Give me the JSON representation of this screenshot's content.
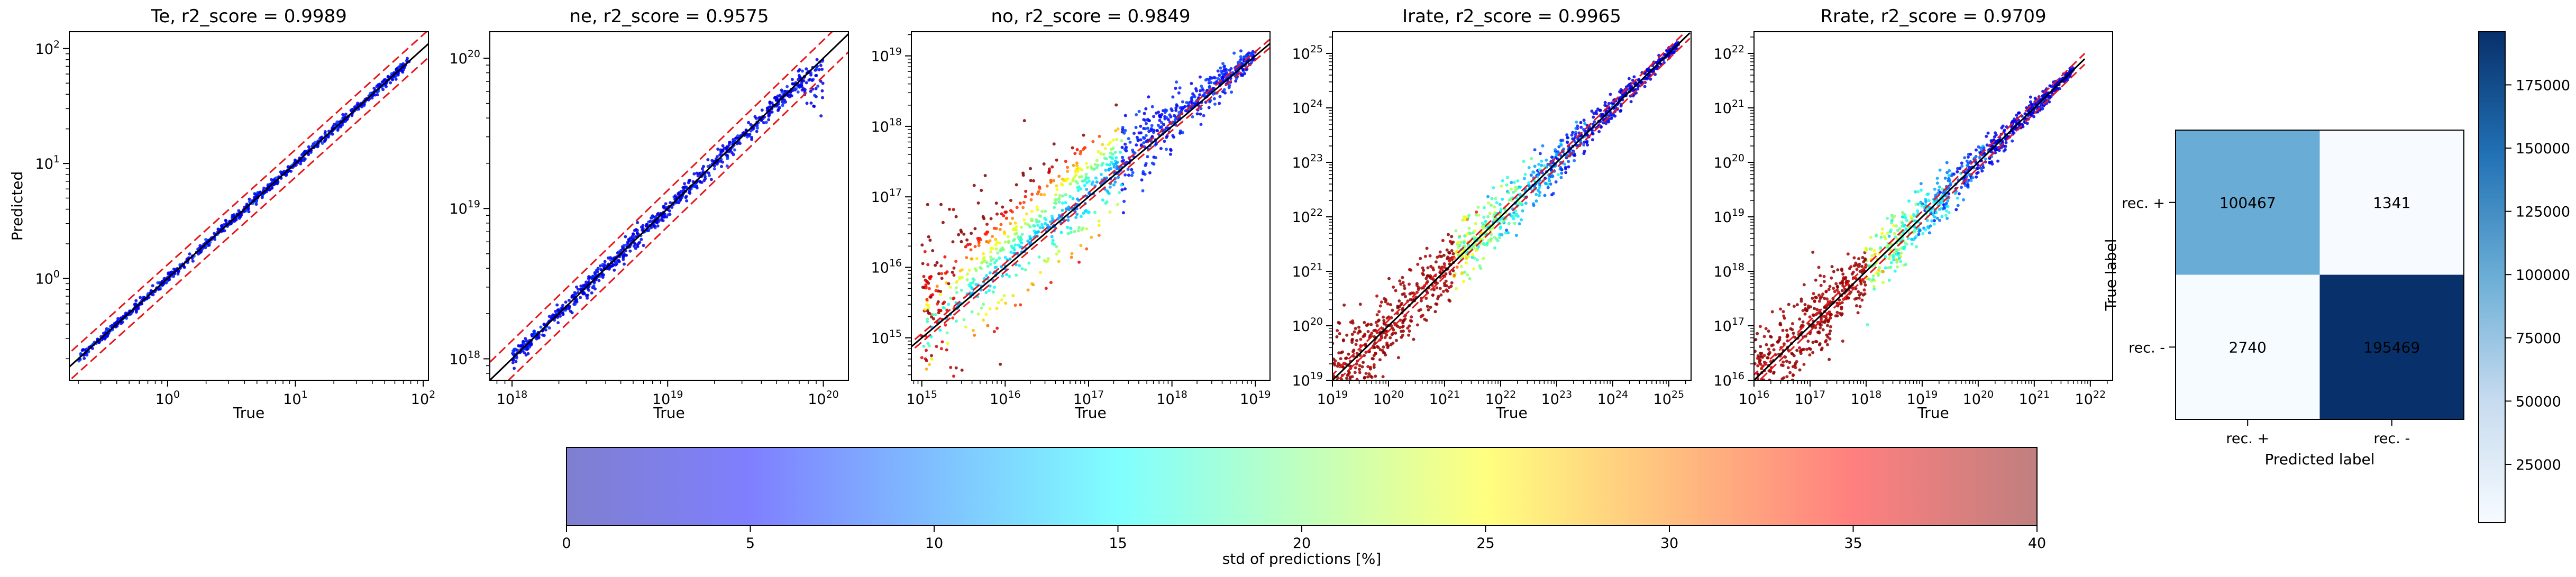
{
  "figure": {
    "colorbar": {
      "label": "std of predictions [%]",
      "ticks": [
        "0",
        "5",
        "10",
        "15",
        "20",
        "25",
        "30",
        "35",
        "40"
      ],
      "stops": [
        "#7f7fd0",
        "#7f7fff",
        "#7fbfff",
        "#7fffff",
        "#bfffbf",
        "#ffff7f",
        "#ffbf7f",
        "#ff7f7f",
        "#c07f7f"
      ]
    },
    "cm_colorbar": {
      "ticks": [
        "25000",
        "50000",
        "75000",
        "100000",
        "125000",
        "150000",
        "175000"
      ],
      "range": [
        2000,
        196000
      ],
      "stops": [
        "#f7fbff",
        "#c6dbef",
        "#6baed6",
        "#2171b5",
        "#08306b"
      ]
    }
  },
  "chart_data": [
    {
      "type": "scatter",
      "title": "Te, r2_score = 0.9989",
      "xlabel": "True",
      "ylabel": "Predicted",
      "scale": "log",
      "xlim": [
        0.17,
        110
      ],
      "ylim": [
        0.13,
        140
      ],
      "xticks": [
        {
          "v": 1,
          "label": "10^0"
        },
        {
          "v": 10,
          "label": "10^1"
        },
        {
          "v": 100,
          "label": "10^2"
        }
      ],
      "yticks": [
        {
          "v": 1,
          "label": "10^0"
        },
        {
          "v": 10,
          "label": "10^1"
        },
        {
          "v": 100,
          "label": "10^2"
        }
      ],
      "data_range": [
        0.2,
        80
      ],
      "spread": 0.02,
      "band": 0.12,
      "color_mode": "blue"
    },
    {
      "type": "scatter",
      "title": "ne, r2_score = 0.9575",
      "xlabel": "True",
      "ylabel": "",
      "scale": "log",
      "xlim": [
        7.2e+17,
        1.45e+20
      ],
      "ylim": [
        7.2e+17,
        1.5e+20
      ],
      "xticks": [
        {
          "v": 1e+18,
          "label": "10^18"
        },
        {
          "v": 1e+19,
          "label": "10^19"
        },
        {
          "v": 1e+20,
          "label": "10^20"
        }
      ],
      "yticks": [
        {
          "v": 1e+18,
          "label": "10^18"
        },
        {
          "v": 1e+19,
          "label": "10^19"
        },
        {
          "v": 1e+20,
          "label": "10^20"
        }
      ],
      "data_range": [
        1e+18,
        1e+20
      ],
      "spread": 0.03,
      "band": 0.12,
      "color_mode": "blue_sat"
    },
    {
      "type": "scatter",
      "title": "no, r2_score = 0.9849",
      "xlabel": "True",
      "ylabel": "",
      "scale": "log",
      "xlim": [
        750000000000000.0,
        1.5e+19
      ],
      "ylim": [
        250000000000000.0,
        2.2e+19
      ],
      "xticks": [
        {
          "v": 1000000000000000.0,
          "label": "10^15"
        },
        {
          "v": 1e+16,
          "label": "10^16"
        },
        {
          "v": 1e+17,
          "label": "10^17"
        },
        {
          "v": 1e+18,
          "label": "10^18"
        },
        {
          "v": 1e+19,
          "label": "10^19"
        }
      ],
      "yticks": [
        {
          "v": 1000000000000000.0,
          "label": "10^15"
        },
        {
          "v": 1e+16,
          "label": "10^16"
        },
        {
          "v": 1e+17,
          "label": "10^17"
        },
        {
          "v": 1e+18,
          "label": "10^18"
        },
        {
          "v": 1e+19,
          "label": "10^19"
        }
      ],
      "data_range": [
        1000000000000000.0,
        1e+19
      ],
      "spread": 0.25,
      "band": 0.06,
      "color_mode": "no"
    },
    {
      "type": "scatter",
      "title": "Irate, r2_score = 0.9965",
      "xlabel": "True",
      "ylabel": "",
      "scale": "log",
      "xlim": [
        1e+19,
        2.5e+25
      ],
      "ylim": [
        1e+19,
        2.5e+25
      ],
      "xticks": [
        {
          "v": 1e+19,
          "label": "10^19"
        },
        {
          "v": 1e+20,
          "label": "10^20"
        },
        {
          "v": 1e+21,
          "label": "10^21"
        },
        {
          "v": 1e+22,
          "label": "10^22"
        },
        {
          "v": 1e+23,
          "label": "10^23"
        },
        {
          "v": 1e+24,
          "label": "10^24"
        },
        {
          "v": 1e+25,
          "label": "10^25"
        }
      ],
      "yticks": [
        {
          "v": 1e+19,
          "label": "10^19"
        },
        {
          "v": 1e+20,
          "label": "10^20"
        },
        {
          "v": 1e+21,
          "label": "10^21"
        },
        {
          "v": 1e+22,
          "label": "10^22"
        },
        {
          "v": 1e+23,
          "label": "10^23"
        },
        {
          "v": 1e+24,
          "label": "10^24"
        },
        {
          "v": 1e+25,
          "label": "10^25"
        }
      ],
      "data_range": [
        1e+19,
        1.5e+25
      ],
      "spread": 0.22,
      "band": 0.1,
      "color_mode": "rate"
    },
    {
      "type": "scatter",
      "title": "Rrate, r2_score = 0.9709",
      "xlabel": "True",
      "ylabel": "",
      "scale": "log",
      "xlim": [
        1e+16,
        2.5e+22
      ],
      "ylim": [
        1e+16,
        2.5e+22
      ],
      "xticks": [
        {
          "v": 1e+16,
          "label": "10^16"
        },
        {
          "v": 1e+17,
          "label": "10^17"
        },
        {
          "v": 1e+18,
          "label": "10^18"
        },
        {
          "v": 1e+19,
          "label": "10^19"
        },
        {
          "v": 1e+20,
          "label": "10^20"
        },
        {
          "v": 1e+21,
          "label": "10^21"
        },
        {
          "v": 1e+22,
          "label": "10^22"
        }
      ],
      "yticks": [
        {
          "v": 1e+16,
          "label": "10^16"
        },
        {
          "v": 1e+17,
          "label": "10^17"
        },
        {
          "v": 1e+18,
          "label": "10^18"
        },
        {
          "v": 1e+19,
          "label": "10^19"
        },
        {
          "v": 1e+20,
          "label": "10^20"
        },
        {
          "v": 1e+21,
          "label": "10^21"
        },
        {
          "v": 1e+22,
          "label": "10^22"
        }
      ],
      "data_range": [
        1e+16,
        5e+21
      ],
      "spread": 0.22,
      "band": 0.1,
      "color_mode": "rate"
    },
    {
      "type": "heatmap",
      "title": "",
      "xlabel": "Predicted label",
      "ylabel": "True label",
      "x_categories": [
        "rec. +",
        "rec. -"
      ],
      "y_categories": [
        "rec. +",
        "rec. -"
      ],
      "values": [
        [
          100467,
          1341
        ],
        [
          2740,
          195469
        ]
      ],
      "colormap": "Blues"
    }
  ]
}
